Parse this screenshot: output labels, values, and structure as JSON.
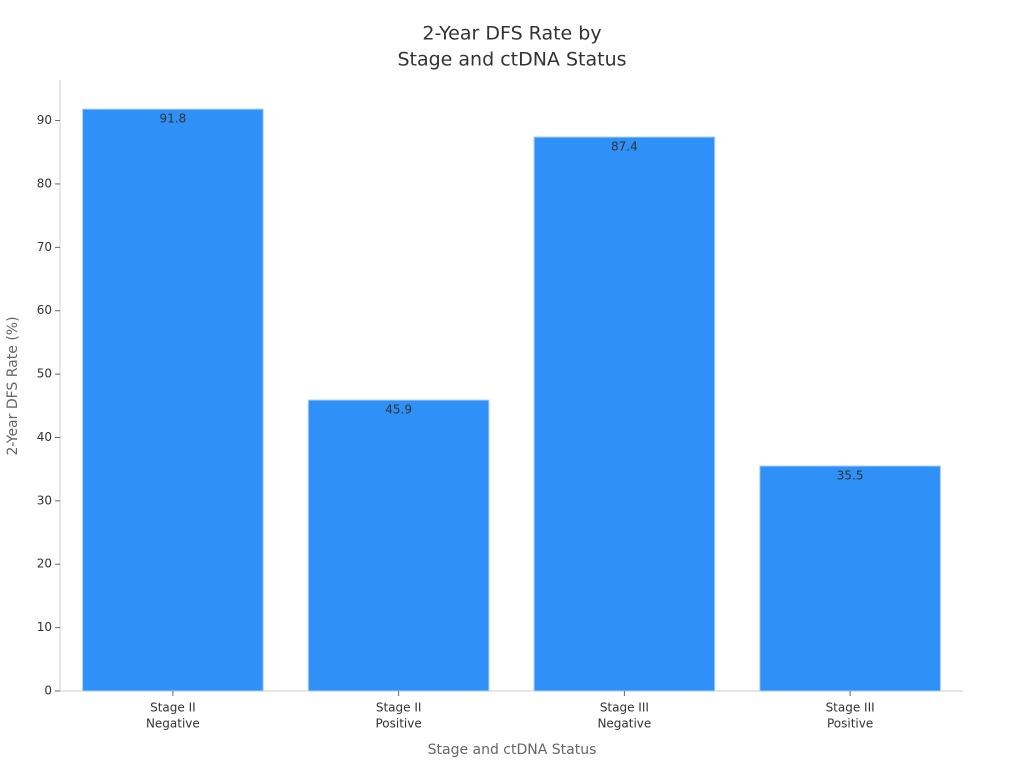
{
  "chart_data": {
    "type": "bar",
    "title": [
      "2-Year DFS Rate by",
      "Stage and ctDNA Status"
    ],
    "x_label": "Stage and ctDNA Status",
    "y_label": "2-Year DFS Rate (%)",
    "categories": [
      [
        "Stage II",
        "Negative"
      ],
      [
        "Stage II",
        "Positive"
      ],
      [
        "Stage III",
        "Negative"
      ],
      [
        "Stage III",
        "Positive"
      ]
    ],
    "values": [
      91.8,
      45.9,
      87.4,
      35.5
    ],
    "color": "#2f91f7",
    "ylim": [
      0,
      96.4
    ],
    "yticks": [
      0,
      10,
      20,
      30,
      40,
      50,
      60,
      70,
      80,
      90
    ],
    "grid": false
  }
}
